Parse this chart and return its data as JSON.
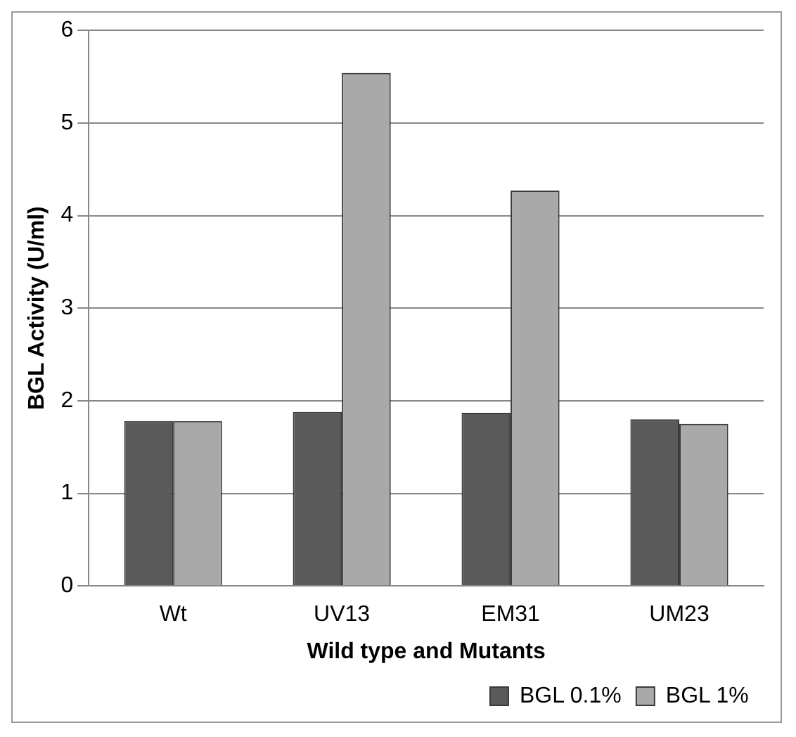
{
  "chart_data": {
    "type": "bar",
    "xlabel": "Wild type and Mutants",
    "ylabel": "BGL Activity (U/ml)",
    "categories": [
      "Wt",
      "UV13",
      "EM31",
      "UM23"
    ],
    "series": [
      {
        "name": "BGL 0.1%",
        "color": "#5a5a5a",
        "values": [
          1.78,
          1.88,
          1.87,
          1.8
        ]
      },
      {
        "name": "BGL 1%",
        "color": "#a9a9a9",
        "values": [
          1.78,
          5.54,
          4.27,
          1.75
        ]
      }
    ],
    "ylim": [
      0,
      6
    ],
    "yticks": [
      0,
      1,
      2,
      3,
      4,
      5,
      6
    ],
    "grid": "y",
    "legend": "bottom right"
  }
}
